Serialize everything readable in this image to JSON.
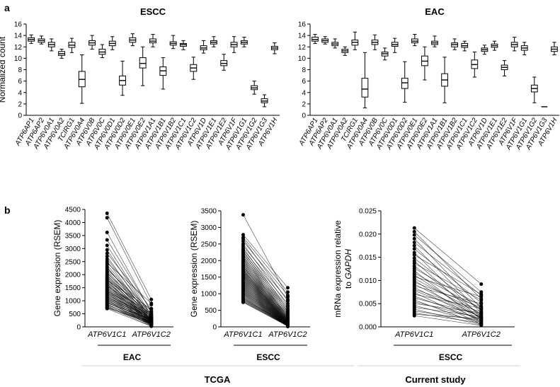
{
  "figure": {
    "panel_a_label": "a",
    "panel_b_label": "b",
    "footer": {
      "tcga_label": "TCGA",
      "current_label": "Current study"
    }
  },
  "chart_data": [
    {
      "type": "boxplot",
      "title": "ESCC",
      "ylabel": "Normalized count",
      "xlabel": "",
      "ylim": [
        0,
        16
      ],
      "yticks": [
        0,
        2,
        4,
        6,
        8,
        10,
        12,
        14,
        16
      ],
      "grid": false,
      "categories": [
        "ATP6AP1",
        "ATP6AP2",
        "ATP6V0A1",
        "ATP6V0A2",
        "TCIRG1",
        "ATP6V0A4",
        "ATP6V0B",
        "ATP6V0C",
        "ATP6V0D1",
        "ATP6V0D2",
        "ATP6V0E1",
        "ATP6V0E2",
        "ATP6V1A1",
        "ATP6V1B1",
        "ATP6V1B2",
        "ATP6V1C1",
        "ATP6V1C2",
        "ATP6V1D",
        "ATP6V1E1",
        "ATP6V1E2",
        "ATP6V1F",
        "ATP6V1G1",
        "ATP6V1G2",
        "ATP6V1G3",
        "ATP6V1H"
      ],
      "boxes": [
        {
          "min": 12.6,
          "q1": 13.0,
          "median": 13.3,
          "q3": 13.6,
          "max": 14.1
        },
        {
          "min": 12.5,
          "q1": 12.8,
          "median": 13.1,
          "q3": 13.4,
          "max": 13.9
        },
        {
          "min": 11.3,
          "q1": 12.0,
          "median": 12.4,
          "q3": 12.8,
          "max": 13.4
        },
        {
          "min": 10.0,
          "q1": 10.5,
          "median": 10.8,
          "q3": 11.2,
          "max": 11.6
        },
        {
          "min": 11.0,
          "q1": 11.9,
          "median": 12.3,
          "q3": 12.8,
          "max": 13.5
        },
        {
          "min": 2.1,
          "q1": 5.0,
          "median": 6.3,
          "q3": 7.7,
          "max": 10.6
        },
        {
          "min": 11.6,
          "q1": 12.3,
          "median": 12.7,
          "q3": 13.1,
          "max": 14.0
        },
        {
          "min": 10.1,
          "q1": 10.7,
          "median": 11.1,
          "q3": 11.6,
          "max": 12.4
        },
        {
          "min": 11.5,
          "q1": 12.2,
          "median": 12.6,
          "q3": 13.0,
          "max": 13.8
        },
        {
          "min": 3.5,
          "q1": 5.3,
          "median": 6.1,
          "q3": 6.9,
          "max": 9.5
        },
        {
          "min": 12.2,
          "q1": 12.8,
          "median": 13.2,
          "q3": 13.6,
          "max": 14.3
        },
        {
          "min": 5.2,
          "q1": 8.3,
          "median": 9.1,
          "q3": 10.1,
          "max": 12.0
        },
        {
          "min": 12.0,
          "q1": 12.7,
          "median": 13.0,
          "q3": 13.4,
          "max": 14.2
        },
        {
          "min": 4.6,
          "q1": 7.0,
          "median": 7.8,
          "q3": 8.5,
          "max": 10.1
        },
        {
          "min": 11.7,
          "q1": 12.3,
          "median": 12.6,
          "q3": 12.9,
          "max": 14.0
        },
        {
          "min": 11.5,
          "q1": 12.1,
          "median": 12.4,
          "q3": 12.6,
          "max": 13.1
        },
        {
          "min": 6.3,
          "q1": 7.7,
          "median": 8.3,
          "q3": 8.9,
          "max": 10.2
        },
        {
          "min": 10.9,
          "q1": 11.5,
          "median": 11.8,
          "q3": 12.2,
          "max": 13.1
        },
        {
          "min": 12.0,
          "q1": 12.5,
          "median": 12.8,
          "q3": 13.1,
          "max": 13.8
        },
        {
          "min": 7.9,
          "q1": 8.7,
          "median": 9.1,
          "q3": 9.6,
          "max": 10.7
        },
        {
          "min": 11.0,
          "q1": 12.0,
          "median": 12.4,
          "q3": 12.8,
          "max": 13.8
        },
        {
          "min": 12.0,
          "q1": 12.5,
          "median": 12.8,
          "q3": 13.1,
          "max": 13.7
        },
        {
          "min": 3.7,
          "q1": 4.5,
          "median": 4.8,
          "q3": 5.2,
          "max": 6.0
        },
        {
          "min": 1.5,
          "q1": 2.2,
          "median": 2.5,
          "q3": 2.9,
          "max": 3.6
        },
        {
          "min": 10.8,
          "q1": 11.5,
          "median": 11.8,
          "q3": 12.1,
          "max": 12.7
        }
      ]
    },
    {
      "type": "boxplot",
      "title": "EAC",
      "ylabel": "",
      "xlabel": "",
      "ylim": [
        0,
        16
      ],
      "yticks": [
        0,
        2,
        4,
        6,
        8,
        10,
        12,
        14,
        16
      ],
      "grid": false,
      "categories": [
        "ATP6AP1",
        "ATP6AP2",
        "ATP6V0A1",
        "ATP6V0A2",
        "TCIRG1",
        "ATP6V0A4",
        "ATP6V0B",
        "ATP6V0C",
        "ATP6V0D1",
        "ATP6V0D2",
        "ATP6V0E1",
        "ATP6V0E2",
        "ATP6V1A1",
        "ATP6V1B1",
        "ATP6V1B2",
        "ATP6V1C1",
        "ATP6V1C2",
        "ATP6V1D",
        "ATP6V1E1",
        "ATP6V1E2",
        "ATP6V1F",
        "ATP6V1G1",
        "ATP6V1G2",
        "ATP6V1G3",
        "ATP6V1H"
      ],
      "boxes": [
        {
          "min": 12.6,
          "q1": 13.0,
          "median": 13.3,
          "q3": 13.7,
          "max": 14.2
        },
        {
          "min": 12.5,
          "q1": 12.8,
          "median": 13.1,
          "q3": 13.4,
          "max": 13.8
        },
        {
          "min": 11.8,
          "q1": 12.2,
          "median": 12.5,
          "q3": 12.8,
          "max": 13.4
        },
        {
          "min": 10.5,
          "q1": 11.0,
          "median": 11.3,
          "q3": 11.6,
          "max": 12.0
        },
        {
          "min": 11.5,
          "q1": 12.3,
          "median": 12.8,
          "q3": 13.2,
          "max": 14.6
        },
        {
          "min": 1.3,
          "q1": 3.2,
          "median": 4.6,
          "q3": 6.5,
          "max": 11.0
        },
        {
          "min": 11.5,
          "q1": 12.4,
          "median": 12.8,
          "q3": 13.2,
          "max": 14.1
        },
        {
          "min": 9.7,
          "q1": 10.4,
          "median": 10.8,
          "q3": 11.1,
          "max": 11.8
        },
        {
          "min": 11.0,
          "q1": 12.1,
          "median": 12.4,
          "q3": 12.8,
          "max": 13.5
        },
        {
          "min": 2.3,
          "q1": 4.7,
          "median": 5.7,
          "q3": 6.5,
          "max": 9.4
        },
        {
          "min": 12.2,
          "q1": 12.7,
          "median": 13.0,
          "q3": 13.4,
          "max": 14.2
        },
        {
          "min": 6.2,
          "q1": 8.7,
          "median": 9.5,
          "q3": 10.4,
          "max": 12.0
        },
        {
          "min": 12.0,
          "q1": 12.4,
          "median": 12.7,
          "q3": 13.0,
          "max": 13.9
        },
        {
          "min": 2.2,
          "q1": 5.1,
          "median": 6.2,
          "q3": 7.3,
          "max": 10.2
        },
        {
          "min": 11.5,
          "q1": 12.0,
          "median": 12.4,
          "q3": 12.7,
          "max": 13.4
        },
        {
          "min": 11.3,
          "q1": 11.9,
          "median": 12.2,
          "q3": 12.6,
          "max": 13.0
        },
        {
          "min": 6.7,
          "q1": 8.2,
          "median": 8.9,
          "q3": 9.7,
          "max": 11.1
        },
        {
          "min": 10.7,
          "q1": 11.2,
          "median": 11.5,
          "q3": 11.8,
          "max": 12.3
        },
        {
          "min": 11.4,
          "q1": 11.9,
          "median": 12.2,
          "q3": 12.5,
          "max": 13.0
        },
        {
          "min": 6.9,
          "q1": 8.0,
          "median": 8.4,
          "q3": 8.8,
          "max": 9.6
        },
        {
          "min": 11.3,
          "q1": 12.0,
          "median": 12.4,
          "q3": 12.8,
          "max": 13.7
        },
        {
          "min": 10.6,
          "q1": 11.4,
          "median": 11.8,
          "q3": 12.2,
          "max": 12.8
        },
        {
          "min": 2.2,
          "q1": 4.1,
          "median": 4.7,
          "q3": 5.3,
          "max": 6.7
        },
        {
          "min": 1.5,
          "q1": 1.5,
          "median": 1.5,
          "q3": 1.5,
          "max": 1.5
        },
        {
          "min": 10.6,
          "q1": 11.2,
          "median": 11.6,
          "q3": 12.0,
          "max": 12.8
        }
      ]
    },
    {
      "type": "paired-scatter",
      "title": "",
      "ylabel": "Gene expression (RSEM)",
      "xlabel": "EAC",
      "categories": [
        "ATP6V1C1",
        "ATP6V1C2"
      ],
      "ylim": [
        0,
        4500
      ],
      "yticks": [
        0,
        500,
        1000,
        1500,
        2000,
        2500,
        3000,
        3500,
        4000,
        4500
      ],
      "pairs": [
        [
          4350,
          1050
        ],
        [
          4180,
          850
        ],
        [
          3620,
          560
        ],
        [
          3330,
          600
        ],
        [
          3120,
          440
        ],
        [
          2950,
          380
        ],
        [
          2820,
          700
        ],
        [
          2700,
          320
        ],
        [
          2600,
          480
        ],
        [
          2520,
          260
        ],
        [
          2450,
          900
        ],
        [
          2380,
          350
        ],
        [
          2300,
          220
        ],
        [
          2250,
          410
        ],
        [
          2200,
          600
        ],
        [
          2150,
          300
        ],
        [
          2100,
          180
        ],
        [
          2050,
          520
        ],
        [
          2000,
          250
        ],
        [
          1970,
          380
        ],
        [
          1930,
          150
        ],
        [
          1900,
          460
        ],
        [
          1860,
          230
        ],
        [
          1830,
          320
        ],
        [
          1800,
          120
        ],
        [
          1770,
          680
        ],
        [
          1740,
          270
        ],
        [
          1710,
          200
        ],
        [
          1680,
          400
        ],
        [
          1650,
          160
        ],
        [
          1620,
          310
        ],
        [
          1600,
          90
        ],
        [
          1570,
          240
        ],
        [
          1540,
          520
        ],
        [
          1510,
          180
        ],
        [
          1490,
          350
        ],
        [
          1460,
          130
        ],
        [
          1440,
          280
        ],
        [
          1410,
          210
        ],
        [
          1390,
          70
        ],
        [
          1360,
          430
        ],
        [
          1340,
          190
        ],
        [
          1310,
          300
        ],
        [
          1290,
          110
        ],
        [
          1270,
          250
        ],
        [
          1240,
          160
        ],
        [
          1220,
          380
        ],
        [
          1200,
          80
        ],
        [
          1180,
          220
        ],
        [
          1150,
          140
        ],
        [
          1130,
          330
        ],
        [
          1110,
          60
        ],
        [
          1090,
          200
        ],
        [
          1060,
          270
        ],
        [
          1040,
          120
        ],
        [
          1020,
          180
        ],
        [
          1000,
          40
        ],
        [
          980,
          240
        ],
        [
          950,
          100
        ],
        [
          930,
          160
        ],
        [
          910,
          300
        ],
        [
          880,
          50
        ],
        [
          860,
          130
        ],
        [
          840,
          200
        ],
        [
          810,
          90
        ],
        [
          790,
          150
        ],
        [
          770,
          30
        ],
        [
          750,
          110
        ],
        [
          720,
          180
        ],
        [
          700,
          20
        ]
      ]
    },
    {
      "type": "paired-scatter",
      "title": "",
      "ylabel": "Gene expression (RSEM)",
      "xlabel": "ESCC",
      "categories": [
        "ATP6V1C1",
        "ATP6V1C2"
      ],
      "ylim": [
        0,
        3500
      ],
      "yticks": [
        0,
        500,
        1000,
        1500,
        2000,
        2500,
        3000,
        3500
      ],
      "pairs": [
        [
          3380,
          900
        ],
        [
          2780,
          1180
        ],
        [
          2700,
          1050
        ],
        [
          2650,
          780
        ],
        [
          2580,
          950
        ],
        [
          2500,
          640
        ],
        [
          2440,
          820
        ],
        [
          2380,
          520
        ],
        [
          2330,
          700
        ],
        [
          2290,
          450
        ],
        [
          2250,
          600
        ],
        [
          2210,
          380
        ],
        [
          2180,
          540
        ],
        [
          2140,
          320
        ],
        [
          2110,
          480
        ],
        [
          2080,
          280
        ],
        [
          2050,
          420
        ],
        [
          2020,
          250
        ],
        [
          1990,
          360
        ],
        [
          1960,
          220
        ],
        [
          1930,
          330
        ],
        [
          1900,
          200
        ],
        [
          1880,
          300
        ],
        [
          1850,
          180
        ],
        [
          1820,
          270
        ],
        [
          1800,
          160
        ],
        [
          1780,
          250
        ],
        [
          1750,
          140
        ],
        [
          1730,
          230
        ],
        [
          1710,
          120
        ],
        [
          1690,
          210
        ],
        [
          1670,
          110
        ],
        [
          1650,
          190
        ],
        [
          1630,
          100
        ],
        [
          1610,
          180
        ],
        [
          1590,
          90
        ],
        [
          1570,
          170
        ],
        [
          1550,
          80
        ],
        [
          1530,
          160
        ],
        [
          1510,
          70
        ],
        [
          1490,
          150
        ],
        [
          1470,
          60
        ],
        [
          1450,
          140
        ],
        [
          1430,
          55
        ],
        [
          1410,
          130
        ],
        [
          1390,
          50
        ],
        [
          1370,
          120
        ],
        [
          1350,
          45
        ],
        [
          1330,
          115
        ],
        [
          1310,
          40
        ],
        [
          1290,
          110
        ],
        [
          1270,
          35
        ],
        [
          1250,
          100
        ],
        [
          1230,
          30
        ],
        [
          1210,
          95
        ],
        [
          1190,
          28
        ],
        [
          1170,
          90
        ],
        [
          1150,
          25
        ],
        [
          1130,
          85
        ],
        [
          1110,
          22
        ],
        [
          1090,
          80
        ],
        [
          1070,
          20
        ],
        [
          1050,
          75
        ],
        [
          1030,
          18
        ],
        [
          1010,
          70
        ],
        [
          990,
          15
        ],
        [
          970,
          65
        ],
        [
          950,
          12
        ],
        [
          920,
          60
        ],
        [
          900,
          10
        ],
        [
          880,
          55
        ],
        [
          860,
          50
        ],
        [
          840,
          45
        ],
        [
          820,
          40
        ],
        [
          800,
          35
        ],
        [
          780,
          30
        ],
        [
          760,
          25
        ],
        [
          740,
          20
        ]
      ]
    },
    {
      "type": "paired-scatter",
      "title": "",
      "ylabel_line1": "mRNa expression relative",
      "ylabel_line2_prefix": "to ",
      "ylabel_line2_italic": "GAPDH",
      "xlabel": "ESCC",
      "categories": [
        "ATP6V1C1",
        "ATP6V1C2"
      ],
      "ylim": [
        0,
        0.025
      ],
      "yticks": [
        0.0,
        0.005,
        0.01,
        0.015,
        0.02,
        0.025
      ],
      "ytick_labels": [
        "0.000",
        "0.005",
        "0.010",
        "0.015",
        "0.020",
        "0.025"
      ],
      "pairs": [
        [
          0.0213,
          0.0092
        ],
        [
          0.0205,
          0.006
        ],
        [
          0.0198,
          0.0075
        ],
        [
          0.019,
          0.004
        ],
        [
          0.0182,
          0.0068
        ],
        [
          0.0175,
          0.003
        ],
        [
          0.0168,
          0.0052
        ],
        [
          0.016,
          0.002
        ],
        [
          0.0155,
          0.007
        ],
        [
          0.0148,
          0.0035
        ],
        [
          0.0142,
          0.0015
        ],
        [
          0.0137,
          0.0058
        ],
        [
          0.0131,
          0.0025
        ],
        [
          0.0126,
          0.0045
        ],
        [
          0.0121,
          0.001
        ],
        [
          0.0116,
          0.0038
        ],
        [
          0.0112,
          0.0018
        ],
        [
          0.0108,
          0.0065
        ],
        [
          0.0104,
          0.0028
        ],
        [
          0.01,
          0.0008
        ],
        [
          0.0096,
          0.0042
        ],
        [
          0.0092,
          0.002
        ],
        [
          0.0088,
          0.005
        ],
        [
          0.0085,
          0.0012
        ],
        [
          0.0081,
          0.0032
        ],
        [
          0.0078,
          0.0022
        ],
        [
          0.0074,
          0.0006
        ],
        [
          0.007,
          0.004
        ],
        [
          0.0066,
          0.0015
        ],
        [
          0.0062,
          0.0026
        ],
        [
          0.0058,
          0.0005
        ],
        [
          0.0054,
          0.0018
        ],
        [
          0.005,
          0.003
        ],
        [
          0.0046,
          0.001
        ],
        [
          0.0042,
          0.0022
        ],
        [
          0.0038,
          0.0004
        ],
        [
          0.0034,
          0.0014
        ],
        [
          0.003,
          0.0008
        ],
        [
          0.0027,
          0.0018
        ],
        [
          0.0024,
          0.0003
        ]
      ]
    }
  ]
}
